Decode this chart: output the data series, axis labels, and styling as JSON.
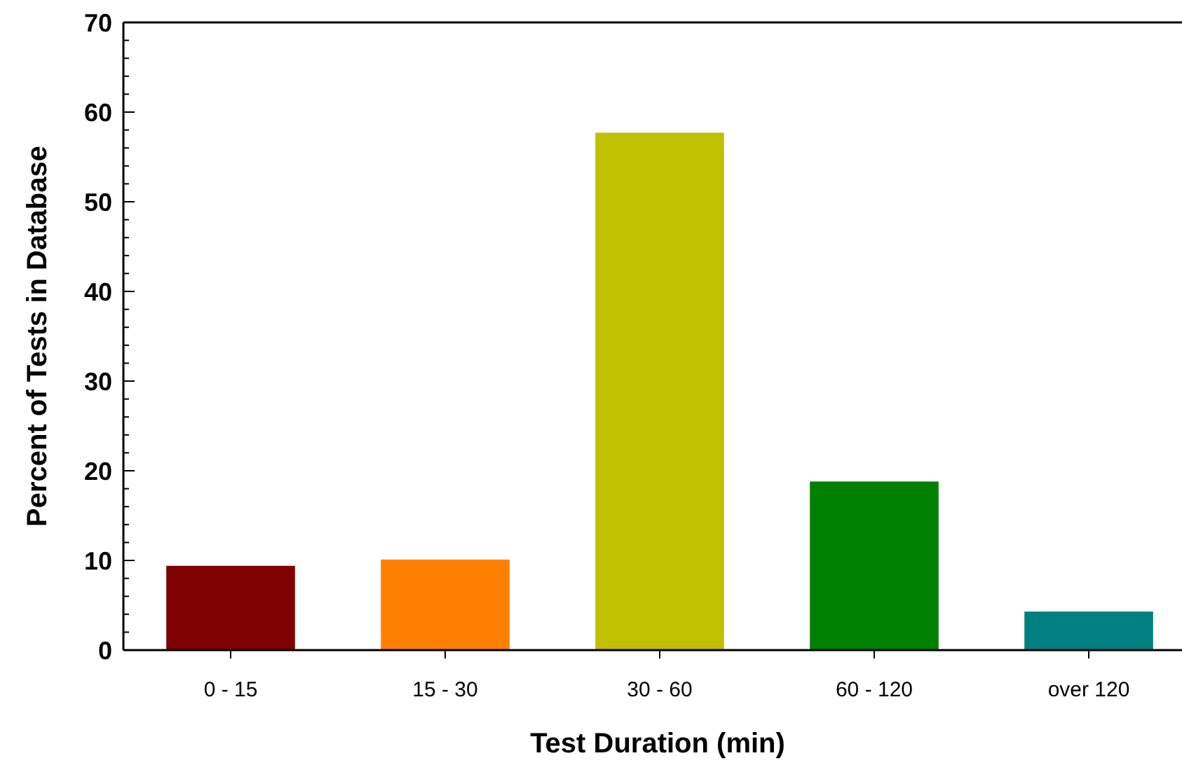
{
  "chart_data": {
    "type": "bar",
    "xlabel": "Test Duration (min)",
    "ylabel": "Percent of Tests in Database",
    "categories": [
      "0 - 15",
      "15 - 30",
      "30 - 60",
      "60 - 120",
      "over 120"
    ],
    "values": [
      9.4,
      10.1,
      57.7,
      18.8,
      4.3
    ],
    "colors": [
      "#7f0000",
      "#ff8000",
      "#c0c000",
      "#008000",
      "#008080"
    ],
    "ylim": [
      0,
      70
    ],
    "yticks": [
      0,
      10,
      20,
      30,
      40,
      50,
      60,
      70
    ],
    "grid": false
  }
}
